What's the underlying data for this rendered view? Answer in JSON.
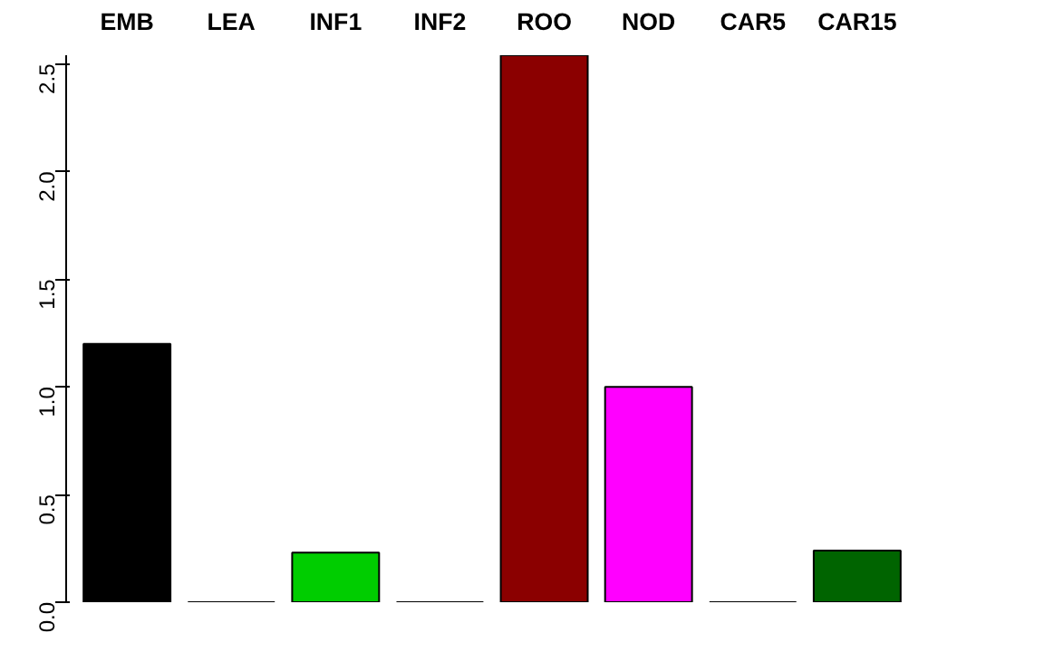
{
  "chart_data": {
    "type": "bar",
    "categories": [
      "EMB",
      "LEA",
      "INF1",
      "INF2",
      "ROO",
      "NOD",
      "CAR5",
      "CAR15"
    ],
    "values": [
      1.2,
      0,
      0.23,
      0,
      2.54,
      1.0,
      0,
      0.24
    ],
    "colors": [
      "#000000",
      "#000000",
      "#00cd00",
      "#000000",
      "#8b0000",
      "#ff00ff",
      "#000000",
      "#006400"
    ],
    "ylim": [
      0,
      2.54
    ],
    "yticks": [
      {
        "value": 0,
        "label": "0.0"
      },
      0.5,
      {
        "value": 1,
        "label": "1.0"
      },
      1.5,
      {
        "value": 2,
        "label": "2.0"
      },
      2.5
    ],
    "grid": false
  }
}
